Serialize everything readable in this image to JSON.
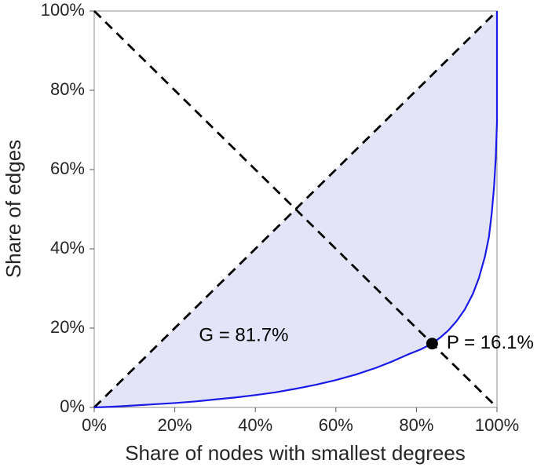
{
  "chart_data": {
    "type": "line",
    "title": "",
    "xlabel": "Share of nodes with smallest degrees",
    "ylabel": "Share of edges",
    "xlim": [
      0,
      100
    ],
    "ylim": [
      0,
      100
    ],
    "xticks": [
      0,
      20,
      40,
      60,
      80,
      100
    ],
    "yticks": [
      0,
      20,
      40,
      60,
      80,
      100
    ],
    "tick_suffix": "%",
    "grid": false,
    "legend_position": "none",
    "gini_coefficient_percent": 81.7,
    "p_index_percent": 16.1,
    "annotations": [
      {
        "name": "gini-annotation",
        "text": "G = 81.7%",
        "x": 26,
        "y": 18
      },
      {
        "name": "p-annotation",
        "text": "P = 16.1%",
        "x": 87.5,
        "y": 16.1
      }
    ],
    "marker": {
      "x": 83.9,
      "y": 16.1,
      "color": "#000000",
      "radius": 7.5
    },
    "reference_lines": [
      {
        "name": "equality-diagonal-dashed",
        "from": [
          0,
          0
        ],
        "to": [
          100,
          100
        ],
        "style": "dashed",
        "color": "#000000"
      },
      {
        "name": "anti-diagonal-dashed",
        "from": [
          0,
          100
        ],
        "to": [
          100,
          0
        ],
        "style": "dashed",
        "color": "#000000"
      }
    ],
    "series": [
      {
        "name": "lorenz-curve",
        "color": "#1a1ae8",
        "fill_between_diagonal": true,
        "fill_color": "#e3e4f8",
        "x": [
          0,
          5,
          10,
          15,
          20,
          25,
          30,
          35,
          40,
          45,
          50,
          55,
          60,
          65,
          70,
          74,
          78,
          81,
          83.9,
          86,
          88,
          90,
          92,
          94,
          95.5,
          97,
          98,
          98.7,
          99.3,
          99.7,
          100,
          100
        ],
        "y": [
          0,
          0.2,
          0.5,
          0.8,
          1.1,
          1.5,
          2.0,
          2.5,
          3.1,
          3.8,
          4.7,
          5.7,
          6.9,
          8.3,
          10.0,
          11.6,
          13.4,
          14.6,
          16.1,
          17.7,
          19.5,
          21.8,
          24.7,
          28.6,
          32.6,
          38.0,
          43.0,
          49.0,
          56.0,
          63.0,
          72.0,
          100.0
        ]
      }
    ]
  }
}
